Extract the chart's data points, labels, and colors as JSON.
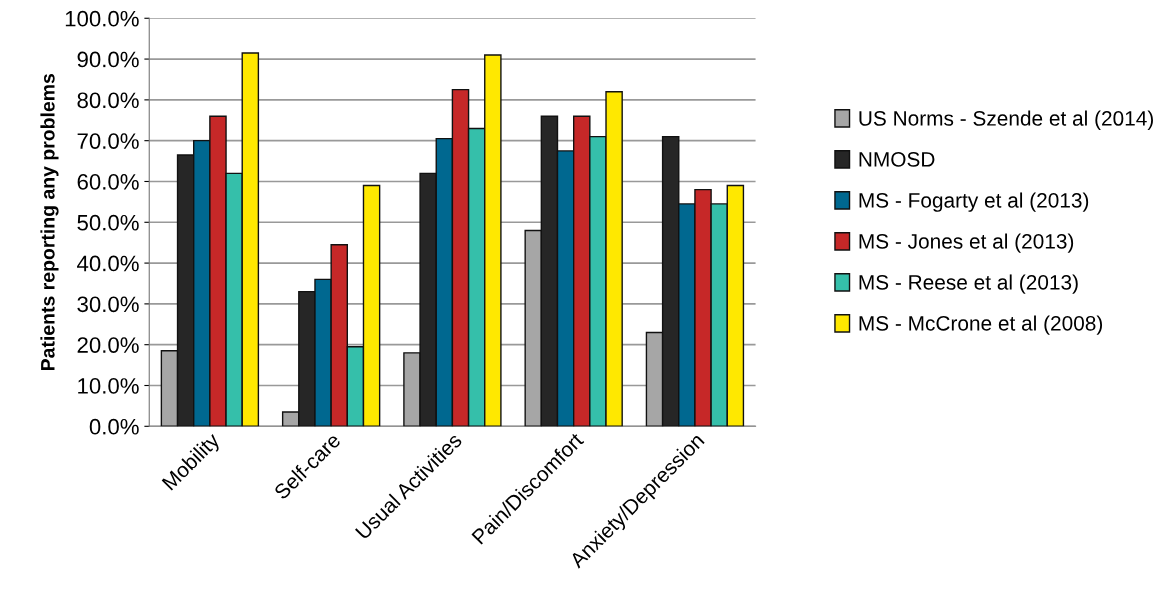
{
  "chart_data": {
    "type": "bar",
    "ylabel": "Patients reporting any problems",
    "categories": [
      "Mobility",
      "Self-care",
      "Usual Activities",
      "Pain/Discomfort",
      "Anxiety/Depression"
    ],
    "series": [
      {
        "name": "US Norms - Szende et al (2014)",
        "color": "#a6a6a6",
        "values": [
          18.5,
          3.5,
          18,
          48,
          23
        ]
      },
      {
        "name": "NMOSD",
        "color": "#262626",
        "values": [
          66.5,
          33,
          62,
          76,
          71
        ]
      },
      {
        "name": "MS - Fogarty et al (2013)",
        "color": "#006890",
        "values": [
          70,
          36,
          70.5,
          67.5,
          54.5
        ]
      },
      {
        "name": "MS - Jones et al (2013)",
        "color": "#c62828",
        "values": [
          76,
          44.5,
          82.5,
          76,
          58
        ]
      },
      {
        "name": "MS - Reese et al (2013)",
        "color": "#35bfaa",
        "values": [
          62,
          19.5,
          73,
          71,
          54.5
        ]
      },
      {
        "name": "MS - McCrone et al (2008)",
        "color": "#ffe800",
        "values": [
          91.5,
          59,
          91,
          82,
          59
        ]
      }
    ],
    "ylim": [
      0,
      100
    ],
    "yticks": [
      {
        "value": 0,
        "label": "0.0%"
      },
      {
        "value": 10,
        "label": "10.0%"
      },
      {
        "value": 20,
        "label": "20.0%"
      },
      {
        "value": 30,
        "label": "30.0%"
      },
      {
        "value": 40,
        "label": "40.0%"
      },
      {
        "value": 50,
        "label": "50.0%"
      },
      {
        "value": 60,
        "label": "60.0%"
      },
      {
        "value": 70,
        "label": "70.0%"
      },
      {
        "value": 80,
        "label": "80.0%"
      },
      {
        "value": 90,
        "label": "90.0%"
      },
      {
        "value": 100,
        "label": "100.0%"
      }
    ],
    "grid": "y",
    "legend": "right"
  }
}
